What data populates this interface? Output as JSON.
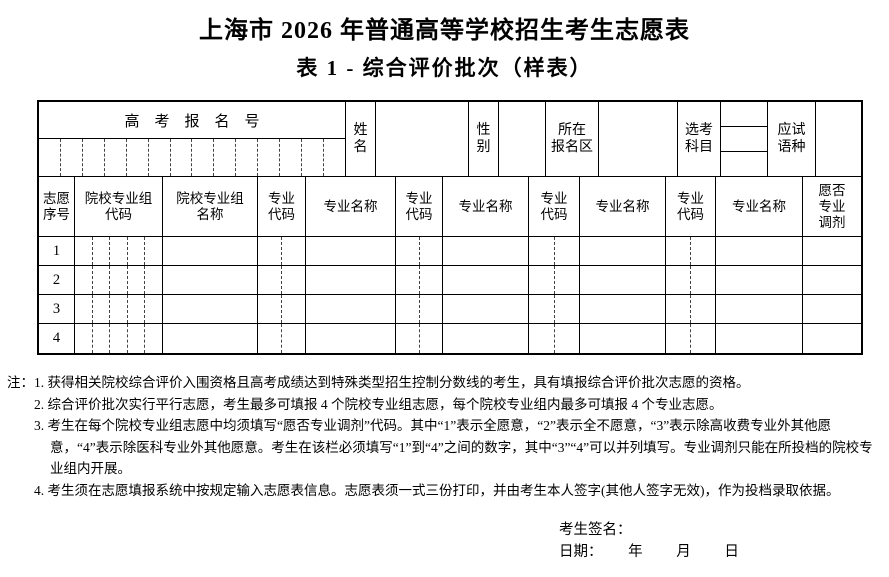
{
  "page": {
    "title": "上海市 2026 年普通高等学校招生考生志愿表",
    "subtitle": "表 1 - 综合评价批次（样表）"
  },
  "info": {
    "regno_label": "高考报名号",
    "regno_digit_cells": 14,
    "name_label": "姓\n名",
    "gender_label": "性\n别",
    "district_label": "所在\n报名区",
    "subjects_label": "选考\n科目",
    "subjects_rows": 3,
    "language_label": "应试\n语种"
  },
  "columns": {
    "seq": "志愿\n序号",
    "group_code": "院校专业组\n代码",
    "group_name": "院校专业组\n名称",
    "major_code": "专业\n代码",
    "major_name": "专业名称",
    "adjust": "愿否\n专业\n调剂"
  },
  "rows": [
    {
      "seq": "1"
    },
    {
      "seq": "2"
    },
    {
      "seq": "3"
    },
    {
      "seq": "4"
    }
  ],
  "notes": {
    "prefix": "注：",
    "items": [
      "1. 获得相关院校综合评价入围资格且高考成绩达到特殊类型招生控制分数线的考生，具有填报综合评价批次志愿的资格。",
      "2. 综合评价批次实行平行志愿，考生最多可填报 4 个院校专业组志愿，每个院校专业组内最多可填报 4 个专业志愿。",
      "3. 考生在每个院校专业组志愿中均须填写“愿否专业调剂”代码。其中“1”表示全愿意，“2”表示全不愿意，“3”表示除高收费专业外其他愿意，“4”表示除医科专业外其他愿意。考生在该栏必须填写“1”到“4”之间的数字，其中“3”“4”可以并列填写。专业调剂只能在所投档的院校专业组内开展。",
      "4. 考生须在志愿填报系统中按规定输入志愿表信息。志愿表须一式三份打印，并由考生本人签字(其他人签字无效)，作为投档录取依据。"
    ]
  },
  "signature": {
    "sign_label": "考生签名：",
    "date_label": "日期：",
    "year_label": "年",
    "month_label": "月",
    "day_label": "日"
  },
  "colors": {
    "border": "#000000",
    "dashed_divider": "#444444",
    "background": "#ffffff",
    "text": "#000000"
  }
}
